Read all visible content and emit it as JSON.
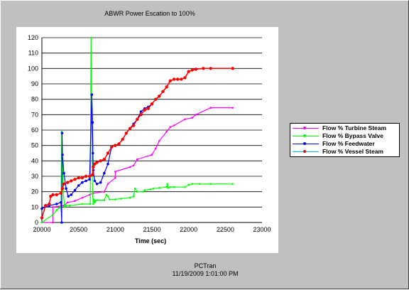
{
  "chart_data": {
    "type": "line",
    "title": "ABWR Power Escation to 100%",
    "xlabel": "Time (sec)",
    "ylabel": "",
    "xlim": [
      20000,
      23000
    ],
    "ylim": [
      0,
      120
    ],
    "xticks": [
      20000,
      20500,
      21000,
      21500,
      22000,
      22500,
      23000
    ],
    "yticks": [
      0,
      10,
      20,
      30,
      40,
      50,
      60,
      70,
      80,
      90,
      100,
      110,
      120
    ],
    "grid": "horizontal",
    "legend_position": "right",
    "series": [
      {
        "name": "Flow  % Turbine Steam",
        "color": "#ff00ff",
        "marker": "small",
        "x": [
          20000,
          20150,
          20150,
          20300,
          20350,
          20450,
          20550,
          20650,
          20700,
          20850,
          20900,
          21000,
          21000,
          21200,
          21250,
          21300,
          21500,
          21550,
          21600,
          21700,
          21750,
          21800,
          21950,
          22050,
          22100,
          22300,
          22600
        ],
        "y": [
          0,
          0,
          10,
          11,
          13,
          14,
          16,
          18,
          19,
          20,
          25,
          29,
          33,
          36,
          37,
          41,
          44,
          48,
          53,
          59,
          62,
          63,
          67,
          68,
          70,
          74.5,
          74.5
        ]
      },
      {
        "name": "Flow  % Bypass Valve",
        "color": "#00ff00",
        "marker": "small",
        "x": [
          20000,
          20150,
          20200,
          20250,
          20260,
          20270,
          20290,
          20310,
          20330,
          20380,
          20550,
          20660,
          20670,
          20680,
          20690,
          20700,
          20710,
          20720,
          20730,
          20750,
          20850,
          20880,
          20900,
          20920,
          21000,
          21080,
          21200,
          21250,
          21270,
          21300,
          21380,
          21400,
          21480,
          21520,
          21600,
          21700,
          21710,
          21720,
          21750,
          21800,
          21950,
          22000,
          22050,
          22150,
          22300,
          22600
        ],
        "y": [
          0,
          5,
          8,
          10,
          10,
          59,
          20,
          10,
          11,
          11,
          12,
          12,
          120,
          70,
          20,
          12,
          15,
          13,
          14,
          14.5,
          14.5,
          18,
          17,
          15,
          15,
          15.5,
          16,
          17,
          22,
          20,
          20,
          21,
          21.5,
          22,
          22.5,
          23,
          25,
          22.5,
          23,
          23,
          23,
          24.5,
          25,
          25,
          25,
          25
        ]
      },
      {
        "name": "Flow  % Feedwater",
        "color": "#0000ff",
        "marker": "dot",
        "x": [
          20000,
          20100,
          20200,
          20260,
          20270,
          20275,
          20280,
          20300,
          20330,
          20360,
          20400,
          20450,
          20500,
          20550,
          20600,
          20650,
          20680,
          20690,
          20695,
          20700,
          20720,
          20750,
          20800,
          20850,
          20900,
          20950,
          21000,
          21050,
          21100,
          21150,
          21200,
          21250,
          21300,
          21350,
          21400,
          21450,
          21500,
          21550,
          21600,
          21650,
          21700,
          21750,
          21800,
          21850,
          21900,
          21950,
          22000,
          22050,
          22100,
          22200,
          22300,
          22600
        ],
        "y": [
          9,
          11,
          12,
          13,
          0,
          58,
          44,
          32,
          22,
          17,
          18,
          21,
          24,
          26,
          27,
          28,
          83,
          65,
          45,
          34,
          27,
          25,
          26,
          32,
          38,
          49,
          50,
          51,
          54,
          58,
          61,
          64,
          67,
          72,
          74,
          75,
          77,
          80,
          82,
          85,
          88,
          92,
          93,
          93,
          93,
          94,
          98,
          99,
          99.5,
          100,
          100,
          100
        ]
      },
      {
        "name": "Flow  % Vessel Steam",
        "color": "#ff0000",
        "marker": "diamond",
        "x": [
          20000,
          20050,
          20100,
          20120,
          20150,
          20200,
          20260,
          20280,
          20300,
          20350,
          20400,
          20450,
          20500,
          20550,
          20600,
          20650,
          20690,
          20700,
          20720,
          20750,
          20800,
          20850,
          20900,
          20950,
          21000,
          21050,
          21100,
          21150,
          21200,
          21250,
          21300,
          21350,
          21400,
          21450,
          21500,
          21550,
          21600,
          21650,
          21700,
          21750,
          21800,
          21850,
          21900,
          21950,
          22000,
          22050,
          22100,
          22200,
          22300,
          22600
        ],
        "y": [
          3,
          11,
          12,
          17,
          18,
          18,
          19,
          22,
          25,
          26,
          27,
          28,
          29,
          29,
          30,
          30,
          31,
          36,
          38,
          39,
          40,
          41,
          45,
          49,
          50,
          51,
          54,
          58,
          61,
          63,
          67,
          70,
          73,
          74,
          77,
          80,
          82,
          85,
          88,
          92,
          93,
          93,
          93,
          94,
          98,
          99,
          99.5,
          100,
          100,
          100
        ]
      }
    ]
  },
  "footer": {
    "line1": "PCTran",
    "line2": "11/19/2009 1:01:00 PM"
  }
}
